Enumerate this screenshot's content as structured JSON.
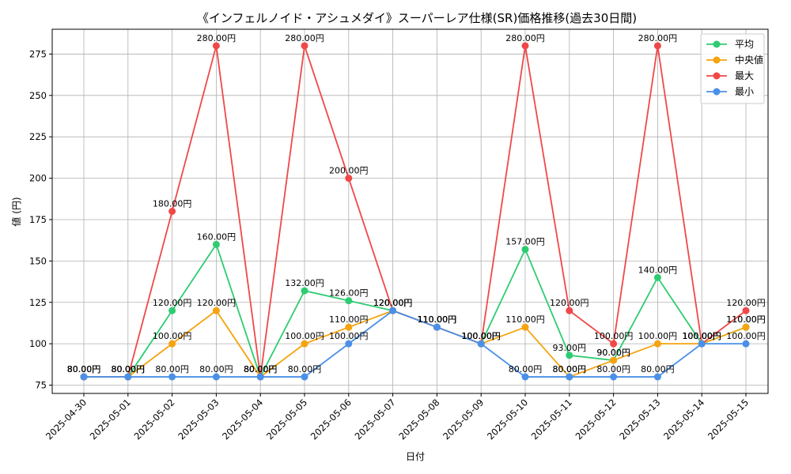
{
  "chart_data": {
    "type": "line",
    "title": "《インフェルノイド・アシュメダイ》スーパーレア仕様(SR)価格推移(過去30日間)",
    "xlabel": "日付",
    "ylabel": "値 (円)",
    "ylim": [
      70,
      290
    ],
    "yticks": [
      75,
      100,
      125,
      150,
      175,
      200,
      225,
      250,
      275
    ],
    "grid": true,
    "legend_position": "top-right",
    "value_suffix": "円",
    "categories": [
      "2025-04-30",
      "2025-05-01",
      "2025-05-02",
      "2025-05-03",
      "2025-05-04",
      "2025-05-05",
      "2025-05-06",
      "2025-05-07",
      "2025-05-08",
      "2025-05-09",
      "2025-05-10",
      "2025-05-11",
      "2025-05-12",
      "2025-05-13",
      "2025-05-14",
      "2025-05-15"
    ],
    "series": [
      {
        "name": "平均",
        "color": "#2ecc71",
        "values": [
          80,
          80,
          120,
          160,
          80,
          132,
          126,
          120,
          110,
          100,
          157,
          93,
          90,
          140,
          100,
          110
        ]
      },
      {
        "name": "中央値",
        "color": "#f5a30f",
        "values": [
          80,
          80,
          100,
          120,
          80,
          100,
          110,
          120,
          110,
          100,
          110,
          80,
          90,
          100,
          100,
          110
        ]
      },
      {
        "name": "最大",
        "color": "#f04848",
        "values": [
          80,
          80,
          180,
          280,
          80,
          280,
          200,
          120,
          110,
          100,
          280,
          120,
          100,
          280,
          100,
          120
        ]
      },
      {
        "name": "最小",
        "color": "#4a90e8",
        "values": [
          80,
          80,
          80,
          80,
          80,
          80,
          100,
          120,
          110,
          100,
          80,
          80,
          80,
          80,
          100,
          100
        ]
      }
    ]
  }
}
